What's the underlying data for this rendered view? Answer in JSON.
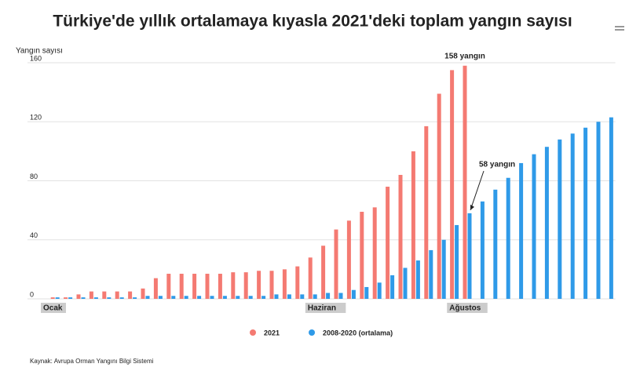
{
  "chart_data": {
    "type": "bar",
    "title": "Türkiye'de yıllık ortalamaya kıyasla 2021'deki toplam yangın sayısı",
    "y_label": "Yangın sayısı",
    "source": "Kaynak: Avrupa Orman Yangını Bilgi Sistemi",
    "annotations": [
      "158 yangın",
      "58 yangın"
    ],
    "categories": [
      "Ocak",
      null,
      null,
      null,
      null,
      null,
      null,
      null,
      null,
      null,
      null,
      null,
      null,
      null,
      null,
      null,
      null,
      null,
      null,
      null,
      null,
      "Haziran",
      null,
      null,
      null,
      null,
      null,
      null,
      null,
      null,
      null,
      null,
      "Ağustos",
      null,
      null,
      null,
      null,
      null,
      null,
      null,
      null,
      null,
      null,
      null
    ],
    "series": [
      {
        "name": "2021",
        "color": "#f47a72",
        "values": [
          1,
          1,
          3,
          5,
          5,
          5,
          5,
          7,
          14,
          17,
          17,
          17,
          17,
          17,
          18,
          18,
          19,
          19,
          20,
          22,
          28,
          36,
          47,
          53,
          59,
          62,
          76,
          84,
          100,
          117,
          139,
          155,
          158,
          null,
          null,
          null,
          null,
          null,
          null,
          null,
          null,
          null,
          null,
          null
        ]
      },
      {
        "name": "2008-2020 (ortalama)",
        "color": "#2f9ae8",
        "values": [
          1,
          1,
          1,
          1,
          1,
          1,
          1,
          2,
          2,
          2,
          2,
          2,
          2,
          2,
          2,
          2,
          2,
          3,
          3,
          3,
          3,
          4,
          4,
          6,
          8,
          11,
          16,
          21,
          26,
          33,
          40,
          50,
          58,
          66,
          74,
          82,
          92,
          98,
          103,
          108,
          112,
          116,
          120,
          123
        ]
      }
    ],
    "ylim": [
      0,
      160
    ],
    "yticks": [
      0,
      40,
      80,
      120,
      160
    ],
    "grid": true,
    "legend": "bottom"
  }
}
